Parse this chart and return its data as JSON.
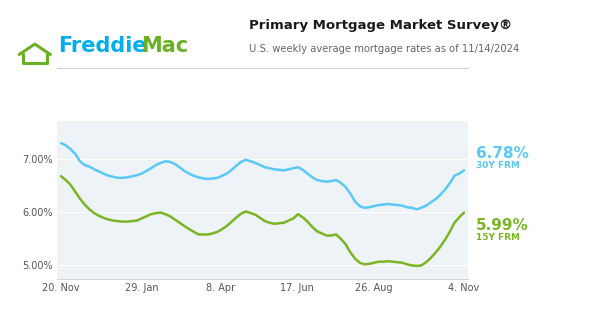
{
  "title": "Primary Mortgage Market Survey®",
  "subtitle": "U.S. weekly average mortgage rates as of 11/14/2024",
  "freddie_blue": "#00aeef",
  "freddie_green": "#6ab023",
  "line_color_30y": "#5bc8f5",
  "line_color_15y": "#7ab523",
  "bg_color": "#ffffff",
  "plot_bg": "#eef3f8",
  "label_30y": "6.78%",
  "label_15y": "5.99%",
  "sublabel_30y": "30Y FRM",
  "sublabel_15y": "15Y FRM",
  "yticks": [
    5.0,
    6.0,
    7.0
  ],
  "ylim": [
    4.75,
    7.7
  ],
  "xtick_labels": [
    "20. Nov",
    "29. Jan",
    "8. Apr",
    "17. Jun",
    "26. Aug",
    "4. Nov"
  ],
  "rate_30y": [
    7.29,
    7.25,
    7.18,
    7.09,
    6.95,
    6.88,
    6.85,
    6.8,
    6.76,
    6.72,
    6.68,
    6.66,
    6.64,
    6.64,
    6.65,
    6.67,
    6.69,
    6.72,
    6.77,
    6.82,
    6.88,
    6.92,
    6.95,
    6.94,
    6.9,
    6.84,
    6.77,
    6.72,
    6.68,
    6.65,
    6.63,
    6.62,
    6.63,
    6.64,
    6.68,
    6.72,
    6.79,
    6.87,
    6.94,
    6.98,
    6.95,
    6.92,
    6.88,
    6.84,
    6.82,
    6.8,
    6.79,
    6.78,
    6.8,
    6.82,
    6.84,
    6.79,
    6.72,
    6.65,
    6.6,
    6.58,
    6.57,
    6.58,
    6.6,
    6.55,
    6.47,
    6.35,
    6.2,
    6.11,
    6.08,
    6.09,
    6.11,
    6.13,
    6.14,
    6.15,
    6.14,
    6.13,
    6.12,
    6.09,
    6.08,
    6.05,
    6.08,
    6.12,
    6.18,
    6.24,
    6.32,
    6.42,
    6.54,
    6.68,
    6.72,
    6.78
  ],
  "rate_15y": [
    6.67,
    6.6,
    6.51,
    6.38,
    6.25,
    6.14,
    6.05,
    5.98,
    5.93,
    5.89,
    5.86,
    5.84,
    5.83,
    5.82,
    5.82,
    5.83,
    5.84,
    5.88,
    5.92,
    5.96,
    5.98,
    5.99,
    5.96,
    5.92,
    5.86,
    5.8,
    5.74,
    5.68,
    5.63,
    5.58,
    5.58,
    5.58,
    5.6,
    5.63,
    5.68,
    5.74,
    5.82,
    5.9,
    5.97,
    6.01,
    5.98,
    5.95,
    5.89,
    5.83,
    5.8,
    5.78,
    5.79,
    5.8,
    5.84,
    5.88,
    5.96,
    5.9,
    5.82,
    5.72,
    5.64,
    5.6,
    5.56,
    5.56,
    5.58,
    5.5,
    5.4,
    5.25,
    5.13,
    5.05,
    5.02,
    5.03,
    5.05,
    5.07,
    5.07,
    5.08,
    5.07,
    5.06,
    5.05,
    5.02,
    5.0,
    4.99,
    5.0,
    5.06,
    5.14,
    5.24,
    5.35,
    5.48,
    5.63,
    5.8,
    5.9,
    5.99
  ]
}
